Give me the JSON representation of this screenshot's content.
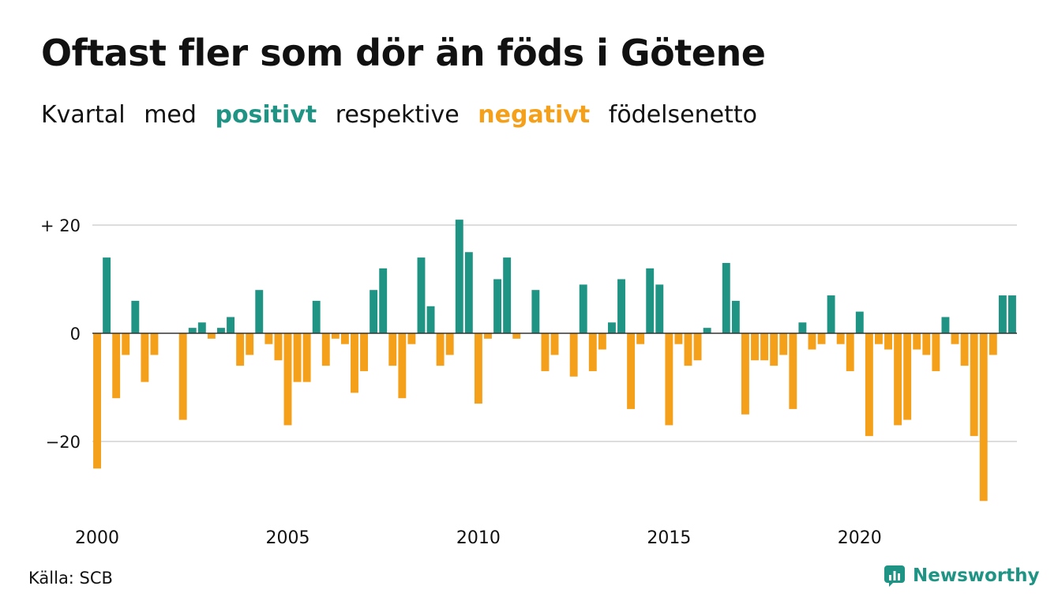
{
  "title": "Oftast fler som dör än föds i Götene",
  "subtitle": {
    "w1": "Kvartal",
    "w2": "med",
    "positive": "positivt",
    "w3": "respektive",
    "negative": "negativt",
    "w4": "födelsenetto"
  },
  "source": "Källa: SCB",
  "brand": "Newsworthy",
  "colors": {
    "positive": "#1f9485",
    "negative": "#f5a01a",
    "grid": "#dddddd",
    "zero": "#333333"
  },
  "chart_data": {
    "type": "bar",
    "x_start_year": 2000,
    "x_tick_labels": [
      "2000",
      "2005",
      "2010",
      "2015",
      "2020"
    ],
    "y_tick_labels": [
      "+ 20",
      "0",
      "−20"
    ],
    "y_ticks": [
      20,
      0,
      -20
    ],
    "ylim": [
      -32,
      22
    ],
    "categories": [
      "2000K1",
      "2000K2",
      "2000K3",
      "2000K4",
      "2001K1",
      "2001K2",
      "2001K3",
      "2001K4",
      "2002K1",
      "2002K2",
      "2002K3",
      "2002K4",
      "2003K1",
      "2003K2",
      "2003K3",
      "2003K4",
      "2004K1",
      "2004K2",
      "2004K3",
      "2004K4",
      "2005K1",
      "2005K2",
      "2005K3",
      "2005K4",
      "2006K1",
      "2006K2",
      "2006K3",
      "2006K4",
      "2007K1",
      "2007K2",
      "2007K3",
      "2007K4",
      "2008K1",
      "2008K2",
      "2008K3",
      "2008K4",
      "2009K1",
      "2009K2",
      "2009K3",
      "2009K4",
      "2010K1",
      "2010K2",
      "2010K3",
      "2010K4",
      "2011K1",
      "2011K2",
      "2011K3",
      "2011K4",
      "2012K1",
      "2012K2",
      "2012K3",
      "2012K4",
      "2013K1",
      "2013K2",
      "2013K3",
      "2013K4",
      "2014K1",
      "2014K2",
      "2014K3",
      "2014K4",
      "2015K1",
      "2015K2",
      "2015K3",
      "2015K4",
      "2016K1",
      "2016K2",
      "2016K3",
      "2016K4",
      "2017K1",
      "2017K2",
      "2017K3",
      "2017K4",
      "2018K1",
      "2018K2",
      "2018K3",
      "2018K4",
      "2019K1",
      "2019K2",
      "2019K3",
      "2019K4",
      "2020K1",
      "2020K2",
      "2020K3",
      "2020K4",
      "2021K1",
      "2021K2",
      "2021K3",
      "2021K4",
      "2022K1",
      "2022K2",
      "2022K3",
      "2022K4",
      "2023K1",
      "2023K2",
      "2023K3",
      "2023K4",
      "2024K1"
    ],
    "values": [
      -25,
      14,
      -12,
      -4,
      6,
      -9,
      -4,
      0,
      0,
      -16,
      1,
      2,
      -1,
      1,
      3,
      -6,
      -4,
      8,
      -2,
      -5,
      -17,
      -9,
      -9,
      6,
      -6,
      -1,
      -2,
      -11,
      -7,
      8,
      12,
      -6,
      -12,
      -2,
      14,
      5,
      -6,
      -4,
      21,
      15,
      -13,
      -1,
      10,
      14,
      -1,
      0,
      8,
      -7,
      -4,
      0,
      -8,
      9,
      -7,
      -3,
      2,
      10,
      -14,
      -2,
      12,
      9,
      -17,
      -2,
      -6,
      -5,
      1,
      0,
      13,
      6,
      -15,
      -5,
      -5,
      -6,
      -4,
      -14,
      2,
      -3,
      -2,
      7,
      -2,
      -7,
      4,
      -19,
      -2,
      -3,
      -17,
      -16,
      -3,
      -4,
      -7,
      3,
      -2,
      -6,
      -19,
      -31,
      -4,
      7,
      7
    ]
  }
}
